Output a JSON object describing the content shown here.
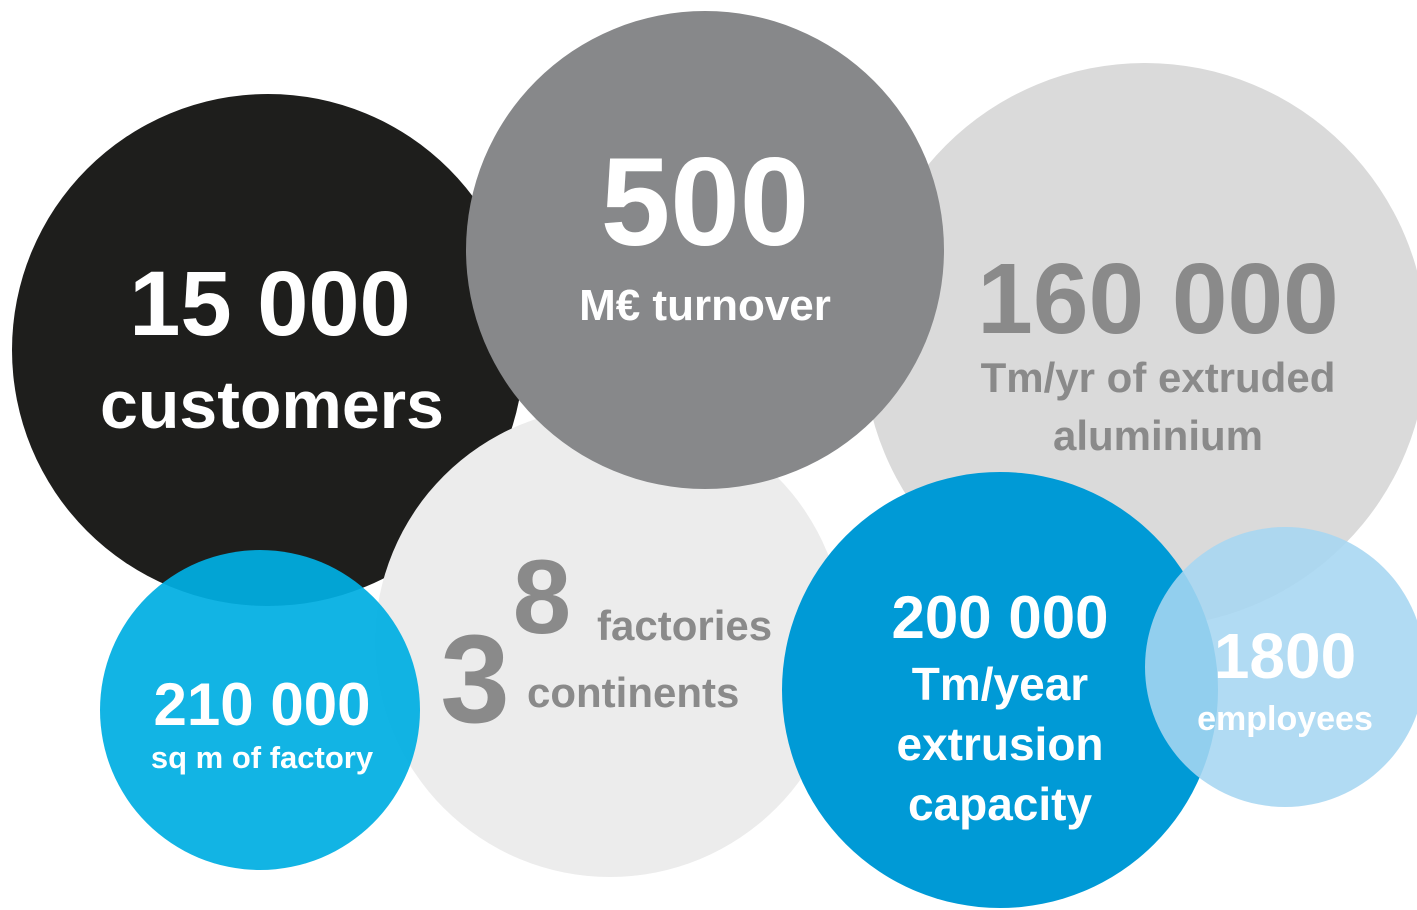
{
  "stats": [
    {
      "figure": "15 000",
      "caption": [
        "customers"
      ]
    },
    {
      "figure": "500",
      "caption": [
        "M€ turnover"
      ]
    },
    {
      "figure": "160 000",
      "caption": [
        "Tm/yr of extruded",
        "aluminium"
      ]
    },
    {
      "figure": "8",
      "caption": [
        "factories"
      ]
    },
    {
      "figure": "3",
      "caption": [
        "continents"
      ]
    },
    {
      "figure": "210 000",
      "caption": [
        "sq m of factory"
      ]
    },
    {
      "figure": "200 000",
      "caption": [
        "Tm/year",
        "extrusion",
        "capacity"
      ]
    },
    {
      "figure": "1800",
      "caption": [
        "employees"
      ]
    }
  ]
}
